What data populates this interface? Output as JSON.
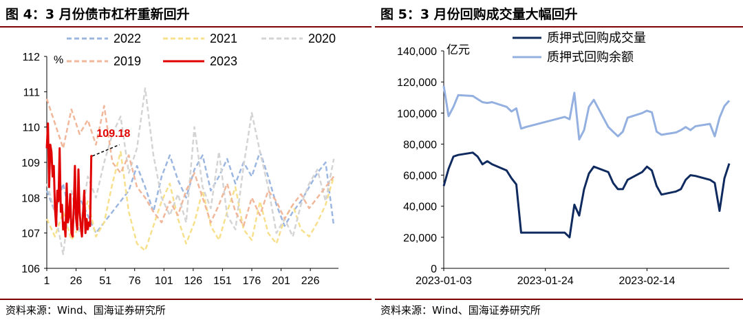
{
  "left": {
    "title": "图 4：3 月份债市杠杆重新回升",
    "source": "资料来源：Wind、国海证券研究所",
    "unit": "%",
    "annotation": "109.18",
    "colors": {
      "2022": "#9bb6e0",
      "2021": "#f7e08c",
      "2020": "#d4d4d4",
      "2019": "#f1b79a",
      "2023": "#e00000",
      "annotation": "#e00000"
    },
    "chart_data": {
      "type": "line",
      "xlim": [
        1,
        250
      ],
      "ylim": [
        106,
        112
      ],
      "x_ticks": [
        "1",
        "26",
        "51",
        "76",
        "101",
        "126",
        "151",
        "176",
        "201",
        "226"
      ],
      "y_ticks": [
        "106",
        "107",
        "108",
        "109",
        "110",
        "111",
        "112"
      ],
      "legend": [
        "2022",
        "2021",
        "2020",
        "2019",
        "2023"
      ],
      "series": [
        {
          "name": "2022",
          "x": [
            1,
            8,
            15,
            22,
            29,
            36,
            43,
            50,
            57,
            64,
            71,
            78,
            85,
            92,
            99,
            106,
            113,
            120,
            127,
            134,
            141,
            148,
            155,
            162,
            169,
            176,
            183,
            190,
            197,
            204,
            211,
            218,
            225,
            232,
            239,
            246
          ],
          "values": [
            108.2,
            107.6,
            108.4,
            107.3,
            108.0,
            107.5,
            107.0,
            107.3,
            107.6,
            107.9,
            108.2,
            108.9,
            108.3,
            107.6,
            108.6,
            109.2,
            108.5,
            108.0,
            108.8,
            109.2,
            108.2,
            108.6,
            109.1,
            108.4,
            109.0,
            108.6,
            109.3,
            108.6,
            107.8,
            107.2,
            107.6,
            107.9,
            108.3,
            108.7,
            109.0,
            107.2
          ]
        },
        {
          "name": "2021",
          "x": [
            1,
            8,
            15,
            22,
            29,
            36,
            43,
            50,
            57,
            64,
            71,
            78,
            85,
            92,
            99,
            106,
            113,
            120,
            127,
            134,
            141,
            148,
            155,
            162,
            169,
            176,
            183,
            190,
            197,
            204,
            211,
            218,
            225,
            232,
            239,
            246
          ],
          "values": [
            107.4,
            106.9,
            107.6,
            106.8,
            107.2,
            107.9,
            106.9,
            107.3,
            108.4,
            109.3,
            107.6,
            106.7,
            106.5,
            107.2,
            107.9,
            108.4,
            107.4,
            106.7,
            107.3,
            108.2,
            107.2,
            106.8,
            107.6,
            108.3,
            107.1,
            106.8,
            107.9,
            107.0,
            106.7,
            107.4,
            107.8,
            107.1,
            106.9,
            107.3,
            107.8,
            108.6
          ]
        },
        {
          "name": "2020",
          "x": [
            1,
            8,
            15,
            22,
            29,
            36,
            43,
            50,
            57,
            64,
            71,
            78,
            85,
            92,
            99,
            106,
            113,
            120,
            127,
            134,
            141,
            148,
            155,
            162,
            169,
            176,
            183,
            190,
            197,
            204,
            211,
            218,
            225,
            232,
            239,
            246
          ],
          "values": [
            108.4,
            107.6,
            106.4,
            108.2,
            107.0,
            108.6,
            108.0,
            109.0,
            109.8,
            110.3,
            108.7,
            109.4,
            111.1,
            109.2,
            108.0,
            107.5,
            108.1,
            107.3,
            110.0,
            108.3,
            107.7,
            109.3,
            107.5,
            107.1,
            108.9,
            110.4,
            109.3,
            108.3,
            107.0,
            107.4,
            106.9,
            107.8,
            108.4,
            108.8,
            107.9,
            109.1
          ]
        },
        {
          "name": "2019",
          "x": [
            1,
            8,
            15,
            22,
            29,
            36,
            43,
            50,
            57,
            64,
            71,
            78,
            85,
            92,
            99,
            106,
            113,
            120,
            127,
            134,
            141,
            148,
            155,
            162,
            169,
            176,
            183,
            190,
            197,
            204,
            211,
            218,
            225,
            232,
            239,
            246
          ],
          "values": [
            110.8,
            110.1,
            109.4,
            110.5,
            109.8,
            110.2,
            109.5,
            110.6,
            109.0,
            108.7,
            109.2,
            108.3,
            108.0,
            107.6,
            107.3,
            107.9,
            107.5,
            108.2,
            108.7,
            108.0,
            107.3,
            107.8,
            108.4,
            107.6,
            107.2,
            108.0,
            107.5,
            108.2,
            107.9,
            107.4,
            107.8,
            108.1,
            107.7,
            108.0,
            108.3,
            108.6
          ]
        },
        {
          "name": "2023",
          "x": [
            1,
            2,
            3,
            4,
            5,
            6,
            7,
            8,
            9,
            10,
            11,
            12,
            13,
            14,
            15,
            16,
            17,
            18,
            19,
            20,
            21,
            22,
            23,
            24,
            25,
            26,
            27,
            28,
            29,
            30,
            31,
            32,
            33,
            34,
            35,
            36,
            37,
            38,
            39,
            40
          ],
          "values": [
            109.4,
            110.1,
            108.3,
            109.5,
            109.3,
            108.6,
            108.9,
            107.7,
            107.2,
            108.2,
            107.9,
            109.4,
            107.6,
            107.8,
            107.1,
            107.3,
            106.9,
            108.4,
            107.3,
            107.5,
            108.1,
            107.0,
            106.9,
            107.7,
            108.9,
            107.4,
            107.1,
            108.8,
            107.6,
            107.2,
            106.9,
            107.6,
            108.2,
            107.0,
            107.4,
            107.1,
            107.3,
            107.2,
            109.18,
            109.18
          ]
        }
      ],
      "annotation": {
        "x": 40,
        "y": 109.18,
        "label": "109.18",
        "to_x": 63,
        "to_y": 109.5
      }
    }
  },
  "right": {
    "title": "图 5：3 月份回购成交量大幅回升",
    "source": "资料来源：Wind、国海证券研究所",
    "unit": "亿元",
    "colors": {
      "质押式回购成交量": "#0f2a5e",
      "质押式回购余额": "#94b0e0"
    },
    "chart_data": {
      "type": "line",
      "xlim": [
        "2023-01-03",
        "2023-03-03"
      ],
      "ylim": [
        0,
        140000
      ],
      "x_ticks": [
        "2023-01-03",
        "2023-01-24",
        "2023-02-14"
      ],
      "y_ticks": [
        "0",
        "20,000",
        "40,000",
        "60,000",
        "80,000",
        "100,000",
        "120,000",
        "140,000"
      ],
      "legend": [
        "质押式回购成交量",
        "质押式回购余额"
      ],
      "series": [
        {
          "name": "质押式回购成交量",
          "x": [
            "2023-01-03",
            "2023-01-04",
            "2023-01-05",
            "2023-01-06",
            "2023-01-09",
            "2023-01-10",
            "2023-01-11",
            "2023-01-12",
            "2023-01-13",
            "2023-01-16",
            "2023-01-17",
            "2023-01-18",
            "2023-01-19",
            "2023-01-20",
            "2023-01-28",
            "2023-01-29",
            "2023-01-30",
            "2023-01-31",
            "2023-02-01",
            "2023-02-02",
            "2023-02-03",
            "2023-02-06",
            "2023-02-07",
            "2023-02-08",
            "2023-02-09",
            "2023-02-10",
            "2023-02-13",
            "2023-02-14",
            "2023-02-15",
            "2023-02-16",
            "2023-02-17",
            "2023-02-20",
            "2023-02-21",
            "2023-02-22",
            "2023-02-23",
            "2023-02-24",
            "2023-02-27",
            "2023-02-28",
            "2023-03-01",
            "2023-03-02",
            "2023-03-03"
          ],
          "values": [
            53000,
            64000,
            72000,
            73000,
            74500,
            72000,
            67000,
            69000,
            67000,
            63000,
            58000,
            54000,
            23000,
            23000,
            23000,
            20000,
            41000,
            34000,
            51000,
            61000,
            65500,
            62000,
            55000,
            51000,
            51000,
            57000,
            62000,
            65500,
            63000,
            53000,
            47500,
            49500,
            51000,
            57000,
            60000,
            59500,
            57000,
            55000,
            37000,
            58000,
            67500
          ]
        },
        {
          "name": "质押式回购余额",
          "x": [
            "2023-01-03",
            "2023-01-04",
            "2023-01-05",
            "2023-01-06",
            "2023-01-09",
            "2023-01-10",
            "2023-01-11",
            "2023-01-12",
            "2023-01-13",
            "2023-01-16",
            "2023-01-17",
            "2023-01-18",
            "2023-01-19",
            "2023-01-20",
            "2023-01-28",
            "2023-01-29",
            "2023-01-30",
            "2023-01-31",
            "2023-02-01",
            "2023-02-02",
            "2023-02-03",
            "2023-02-06",
            "2023-02-07",
            "2023-02-08",
            "2023-02-09",
            "2023-02-10",
            "2023-02-13",
            "2023-02-14",
            "2023-02-15",
            "2023-02-16",
            "2023-02-17",
            "2023-02-20",
            "2023-02-21",
            "2023-02-22",
            "2023-02-23",
            "2023-02-24",
            "2023-02-27",
            "2023-02-28",
            "2023-03-01",
            "2023-03-02",
            "2023-03-03"
          ],
          "values": [
            117500,
            98000,
            104000,
            111500,
            111000,
            109000,
            107000,
            106500,
            107000,
            104000,
            101000,
            103000,
            90000,
            91000,
            97500,
            96000,
            113000,
            83000,
            89000,
            104000,
            108500,
            91000,
            88000,
            85000,
            88000,
            97000,
            100000,
            101500,
            100500,
            88000,
            86000,
            87500,
            89000,
            91000,
            89000,
            91500,
            93000,
            85000,
            97000,
            104500,
            108000
          ]
        }
      ]
    }
  }
}
